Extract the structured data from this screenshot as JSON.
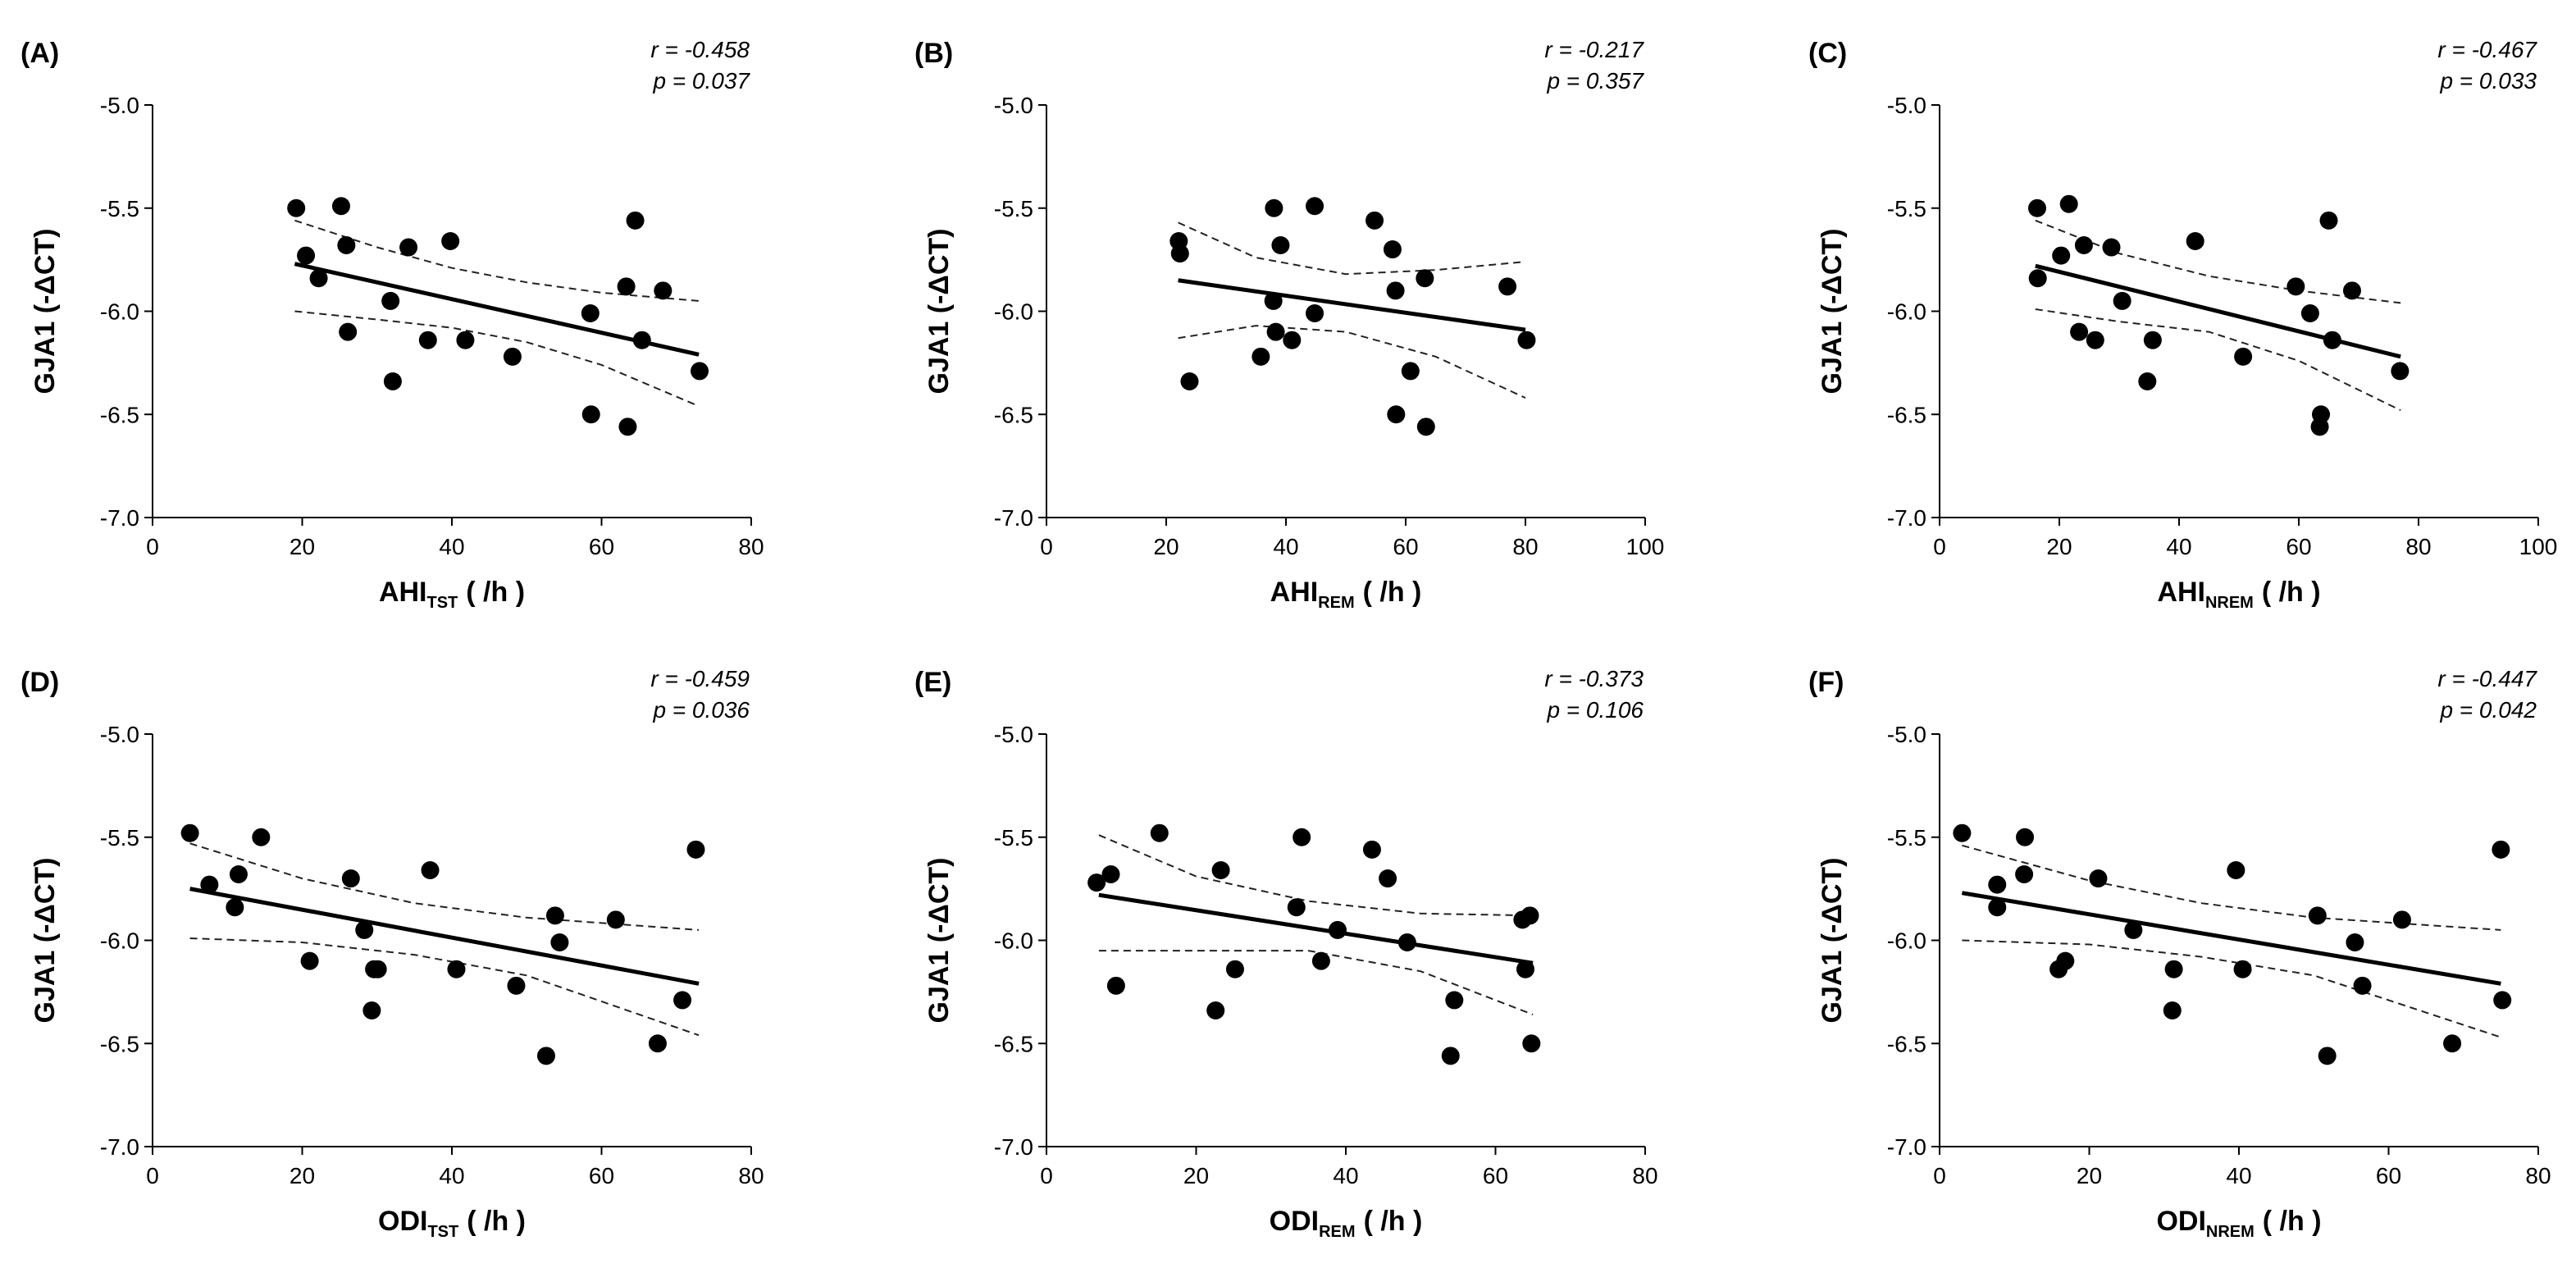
{
  "figure": {
    "background": "#ffffff",
    "ink": "#000000"
  },
  "chart_data": [
    {
      "type": "scatter",
      "panel": "(A)",
      "ylabel": "GJA1 (-ΔCT)",
      "xlabel_main": "AHI",
      "xlabel_sub": "TST",
      "xlabel_unit": "( /h )",
      "xlim": [
        0,
        80
      ],
      "xticks": [
        0,
        20,
        40,
        60,
        80
      ],
      "ylim": [
        -7.0,
        -5.0
      ],
      "yticks": [
        -7.0,
        -6.5,
        -6.0,
        -5.5,
        -5.0
      ],
      "r_text": "r = -0.458",
      "p_text": "p = 0.037",
      "x": [
        19.2,
        20.5,
        22.2,
        25.2,
        25.9,
        26.1,
        31.8,
        32.1,
        34.2,
        36.8,
        39.8,
        41.8,
        48.1,
        58.5,
        58.6,
        63.5,
        63.3,
        64.5,
        65.4,
        68.2,
        73.1
      ],
      "y": [
        -5.5,
        -5.73,
        -5.84,
        -5.49,
        -5.68,
        -6.1,
        -5.95,
        -6.34,
        -5.69,
        -6.14,
        -5.66,
        -6.14,
        -6.22,
        -6.01,
        -6.5,
        -6.56,
        -5.88,
        -5.56,
        -6.14,
        -5.9,
        -6.29
      ],
      "fit": {
        "x": [
          19,
          73
        ],
        "y": [
          -5.77,
          -6.21
        ]
      },
      "ci_upper": {
        "x": [
          19,
          30,
          40,
          50,
          60,
          73
        ],
        "y": [
          -5.56,
          -5.69,
          -5.79,
          -5.86,
          -5.91,
          -5.95
        ]
      },
      "ci_lower": {
        "x": [
          19,
          30,
          40,
          50,
          60,
          73
        ],
        "y": [
          -6.0,
          -6.04,
          -6.08,
          -6.15,
          -6.26,
          -6.46
        ]
      }
    },
    {
      "type": "scatter",
      "panel": "(B)",
      "ylabel": "GJA1 (-ΔCT)",
      "xlabel_main": "AHI",
      "xlabel_sub": "REM",
      "xlabel_unit": "( /h )",
      "xlim": [
        0,
        100
      ],
      "xticks": [
        0,
        20,
        40,
        60,
        80,
        100
      ],
      "ylim": [
        -7.0,
        -5.0
      ],
      "yticks": [
        -7.0,
        -6.5,
        -6.0,
        -5.5,
        -5.0
      ],
      "r_text": "r = -0.217",
      "p_text": "p = 0.357",
      "x": [
        22.1,
        22.3,
        23.9,
        35.8,
        37.9,
        38.3,
        39.1,
        38.0,
        41.0,
        44.8,
        44.8,
        54.8,
        57.8,
        58.3,
        58.4,
        60.8,
        63.2,
        63.4,
        77.0,
        80.2
      ],
      "y": [
        -5.66,
        -5.72,
        -6.34,
        -6.22,
        -5.95,
        -6.1,
        -5.68,
        -5.5,
        -6.14,
        -6.01,
        -5.49,
        -5.56,
        -5.7,
        -5.9,
        -6.5,
        -6.29,
        -5.84,
        -6.56,
        -5.88,
        -6.14
      ],
      "fit": {
        "x": [
          22,
          80
        ],
        "y": [
          -5.85,
          -6.09
        ]
      },
      "ci_upper": {
        "x": [
          22,
          35,
          50,
          65,
          80
        ],
        "y": [
          -5.57,
          -5.74,
          -5.82,
          -5.8,
          -5.76
        ]
      },
      "ci_lower": {
        "x": [
          22,
          35,
          50,
          65,
          80
        ],
        "y": [
          -6.13,
          -6.07,
          -6.1,
          -6.22,
          -6.42
        ]
      }
    },
    {
      "type": "scatter",
      "panel": "(C)",
      "ylabel": "GJA1 (-ΔCT)",
      "xlabel_main": "AHI",
      "xlabel_sub": "NREM",
      "xlabel_unit": "( /h )",
      "xlim": [
        0,
        100
      ],
      "xticks": [
        0,
        20,
        40,
        60,
        80,
        100
      ],
      "ylim": [
        -7.0,
        -5.0
      ],
      "yticks": [
        -7.0,
        -6.5,
        -6.0,
        -5.5,
        -5.0
      ],
      "r_text": "r = -0.467",
      "p_text": "p = 0.033",
      "x": [
        16.3,
        16.4,
        20.3,
        21.6,
        23.3,
        24.1,
        26.0,
        28.7,
        30.5,
        34.7,
        35.6,
        42.7,
        50.7,
        59.5,
        61.9,
        63.7,
        63.5,
        65.0,
        65.6,
        68.9,
        76.9
      ],
      "y": [
        -5.5,
        -5.84,
        -5.73,
        -5.48,
        -6.1,
        -5.68,
        -6.14,
        -5.69,
        -5.95,
        -6.34,
        -6.14,
        -5.66,
        -6.22,
        -5.88,
        -6.01,
        -6.5,
        -6.56,
        -5.56,
        -6.14,
        -5.9,
        -6.29
      ],
      "fit": {
        "x": [
          16,
          77
        ],
        "y": [
          -5.78,
          -6.22
        ]
      },
      "ci_upper": {
        "x": [
          16,
          30,
          45,
          60,
          77
        ],
        "y": [
          -5.56,
          -5.72,
          -5.83,
          -5.9,
          -5.96
        ]
      },
      "ci_lower": {
        "x": [
          16,
          30,
          45,
          60,
          77
        ],
        "y": [
          -5.99,
          -6.05,
          -6.1,
          -6.24,
          -6.48
        ]
      }
    },
    {
      "type": "scatter",
      "panel": "(D)",
      "ylabel": "GJA1 (-ΔCT)",
      "xlabel_main": "ODI",
      "xlabel_sub": "TST",
      "xlabel_unit": "( /h )",
      "xlim": [
        0,
        80
      ],
      "xticks": [
        0,
        20,
        40,
        60,
        80
      ],
      "ylim": [
        -7.0,
        -5.0
      ],
      "yticks": [
        -7.0,
        -6.5,
        -6.0,
        -5.5,
        -5.0
      ],
      "r_text": "r = -0.459",
      "p_text": "p = 0.036",
      "x": [
        5.0,
        7.6,
        11.0,
        11.5,
        14.5,
        21.0,
        26.5,
        28.3,
        29.3,
        29.6,
        30.1,
        37.1,
        40.6,
        48.6,
        52.6,
        53.8,
        54.4,
        61.9,
        67.5,
        70.8,
        72.6
      ],
      "y": [
        -5.48,
        -5.73,
        -5.84,
        -5.68,
        -5.5,
        -6.1,
        -5.7,
        -5.95,
        -6.34,
        -6.14,
        -6.14,
        -5.66,
        -6.14,
        -6.22,
        -6.56,
        -5.88,
        -6.01,
        -5.9,
        -6.5,
        -6.29,
        -5.56
      ],
      "fit": {
        "x": [
          5,
          73
        ],
        "y": [
          -5.75,
          -6.21
        ]
      },
      "ci_upper": {
        "x": [
          5,
          20,
          35,
          50,
          73
        ],
        "y": [
          -5.53,
          -5.7,
          -5.82,
          -5.89,
          -5.95
        ]
      },
      "ci_lower": {
        "x": [
          5,
          20,
          35,
          50,
          73
        ],
        "y": [
          -5.99,
          -6.01,
          -6.07,
          -6.17,
          -6.46
        ]
      }
    },
    {
      "type": "scatter",
      "panel": "(E)",
      "ylabel": "GJA1 (-ΔCT)",
      "xlabel_main": "ODI",
      "xlabel_sub": "REM",
      "xlabel_unit": "( /h )",
      "xlim": [
        0,
        80
      ],
      "xticks": [
        0,
        20,
        40,
        60,
        80
      ],
      "ylim": [
        -7.0,
        -5.0
      ],
      "yticks": [
        -7.0,
        -6.5,
        -6.0,
        -5.5,
        -5.0
      ],
      "r_text": "r = -0.373",
      "p_text": "p = 0.106",
      "x": [
        6.7,
        8.6,
        9.3,
        15.1,
        22.6,
        23.3,
        25.2,
        33.4,
        34.1,
        36.7,
        38.9,
        43.5,
        45.6,
        48.2,
        54.0,
        54.5,
        63.6,
        64.0,
        64.6,
        64.8
      ],
      "y": [
        -5.72,
        -5.68,
        -6.22,
        -5.48,
        -6.34,
        -5.66,
        -6.14,
        -5.84,
        -5.5,
        -6.1,
        -5.95,
        -5.56,
        -5.7,
        -6.01,
        -6.56,
        -6.29,
        -5.9,
        -6.14,
        -5.88,
        -6.5
      ],
      "fit": {
        "x": [
          7,
          65
        ],
        "y": [
          -5.78,
          -6.11
        ]
      },
      "ci_upper": {
        "x": [
          7,
          20,
          35,
          50,
          65
        ],
        "y": [
          -5.49,
          -5.69,
          -5.81,
          -5.87,
          -5.88
        ]
      },
      "ci_lower": {
        "x": [
          7,
          20,
          35,
          50,
          65
        ],
        "y": [
          -6.05,
          -6.05,
          -6.05,
          -6.15,
          -6.36
        ]
      }
    },
    {
      "type": "scatter",
      "panel": "(F)",
      "ylabel": "GJA1 (-ΔCT)",
      "xlabel_main": "ODI",
      "xlabel_sub": "NREM",
      "xlabel_unit": "( /h )",
      "xlim": [
        0,
        80
      ],
      "xticks": [
        0,
        20,
        40,
        60,
        80
      ],
      "ylim": [
        -7.0,
        -5.0
      ],
      "yticks": [
        -7.0,
        -6.5,
        -6.0,
        -5.5,
        -5.0
      ],
      "r_text": "r = -0.447",
      "p_text": "p = 0.042",
      "x": [
        3.0,
        7.7,
        7.7,
        11.3,
        11.4,
        15.9,
        16.8,
        21.2,
        25.9,
        31.1,
        31.3,
        39.6,
        40.5,
        50.5,
        51.8,
        55.5,
        56.5,
        61.8,
        68.5,
        75.0,
        75.2
      ],
      "y": [
        -5.48,
        -5.73,
        -5.84,
        -5.68,
        -5.5,
        -6.14,
        -6.1,
        -5.7,
        -5.95,
        -6.34,
        -6.14,
        -5.66,
        -6.14,
        -5.88,
        -6.56,
        -6.01,
        -6.22,
        -5.9,
        -6.5,
        -5.56,
        -6.29
      ],
      "fit": {
        "x": [
          3,
          75
        ],
        "y": [
          -5.77,
          -6.21
        ]
      },
      "ci_upper": {
        "x": [
          3,
          20,
          35,
          50,
          75
        ],
        "y": [
          -5.54,
          -5.71,
          -5.82,
          -5.89,
          -5.95
        ]
      },
      "ci_lower": {
        "x": [
          3,
          20,
          35,
          50,
          75
        ],
        "y": [
          -6.0,
          -6.02,
          -6.08,
          -6.17,
          -6.47
        ]
      }
    }
  ]
}
